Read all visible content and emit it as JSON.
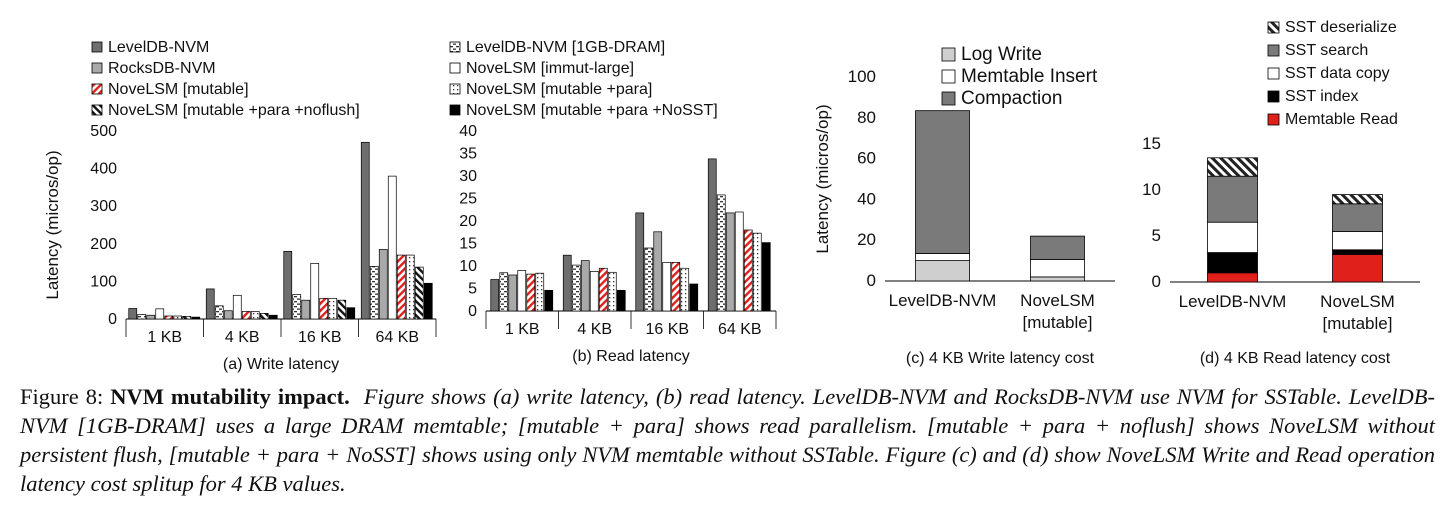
{
  "patterns": {
    "solid_dark": "#6e6e6e",
    "solid_mid": "#a9a9a9",
    "red": "#e0211b",
    "black": "#000000",
    "white": "#ffffff",
    "light": "#cfcfcf",
    "mid_gray": "#7a7a7a"
  },
  "legend_left": [
    {
      "label": "LevelDB-NVM",
      "pattern": "dark"
    },
    {
      "label": "RocksDB-NVM",
      "pattern": "mid"
    },
    {
      "label": "NoveLSM [mutable]",
      "pattern": "redhatch"
    },
    {
      "label": "NoveLSM [mutable +para +noflush]",
      "pattern": "blackhatch"
    }
  ],
  "legend_right": [
    {
      "label": "LevelDB-NVM [1GB-DRAM]",
      "pattern": "dashes"
    },
    {
      "label": "NoveLSM [immut-large]",
      "pattern": "white"
    },
    {
      "label": "NoveLSM [mutable +para]",
      "pattern": "dots"
    },
    {
      "label": "NoveLSM [mutable +para +NoSST]",
      "pattern": "black"
    }
  ],
  "chart_data": [
    {
      "type": "bar",
      "panel": "(a) Write latency",
      "ylabel": "Latency  (micros/op)",
      "ylim": [
        0,
        500
      ],
      "yticks": [
        0,
        100,
        200,
        300,
        400,
        500
      ],
      "categories": [
        "1 KB",
        "4 KB",
        "16 KB",
        "64 KB"
      ],
      "series": [
        {
          "name": "LevelDB-NVM",
          "pattern": "dark",
          "values": [
            28,
            80,
            180,
            470
          ]
        },
        {
          "name": "LevelDB-NVM [1GB-DRAM]",
          "pattern": "dashes",
          "values": [
            12,
            35,
            65,
            140
          ]
        },
        {
          "name": "RocksDB-NVM",
          "pattern": "mid",
          "values": [
            10,
            22,
            50,
            185
          ]
        },
        {
          "name": "NoveLSM [immut-large]",
          "pattern": "white",
          "values": [
            27,
            63,
            148,
            380
          ]
        },
        {
          "name": "NoveLSM [mutable]",
          "pattern": "redhatch",
          "values": [
            8,
            20,
            55,
            170
          ]
        },
        {
          "name": "NoveLSM [mutable +para]",
          "pattern": "dots",
          "values": [
            8,
            20,
            55,
            170
          ]
        },
        {
          "name": "NoveLSM [mutable +para +noflush]",
          "pattern": "blackhatch",
          "values": [
            7,
            15,
            50,
            138
          ]
        },
        {
          "name": "NoveLSM [mutable +para +NoSST]",
          "pattern": "black",
          "values": [
            5,
            10,
            30,
            95
          ]
        }
      ]
    },
    {
      "type": "bar",
      "panel": "(b) Read latency",
      "ylabel": "",
      "ylim": [
        0,
        40
      ],
      "yticks": [
        0,
        5,
        10,
        15,
        20,
        25,
        30,
        35,
        40
      ],
      "categories": [
        "1 KB",
        "4 KB",
        "16 KB",
        "64 KB"
      ],
      "series": [
        {
          "name": "LevelDB-NVM",
          "pattern": "dark",
          "values": [
            7.0,
            12.4,
            21.8,
            33.8
          ]
        },
        {
          "name": "LevelDB-NVM [1GB-DRAM]",
          "pattern": "dashes",
          "values": [
            8.5,
            10.2,
            14.0,
            25.8
          ]
        },
        {
          "name": "RocksDB-NVM",
          "pattern": "mid",
          "values": [
            8.0,
            11.2,
            17.6,
            21.8
          ]
        },
        {
          "name": "NoveLSM [immut-large]",
          "pattern": "white",
          "values": [
            9.0,
            8.8,
            10.8,
            22.0
          ]
        },
        {
          "name": "NoveLSM [mutable]",
          "pattern": "redhatch",
          "values": [
            8.2,
            9.5,
            10.8,
            18.0
          ]
        },
        {
          "name": "NoveLSM [mutable +para]",
          "pattern": "dots",
          "values": [
            8.4,
            8.6,
            9.5,
            17.3
          ]
        },
        {
          "name": "NoveLSM [mutable +para +NoSST]",
          "pattern": "black",
          "values": [
            4.6,
            4.6,
            6.0,
            15.2
          ]
        }
      ]
    },
    {
      "type": "bar",
      "stacked": true,
      "panel": "(c) 4 KB Write latency cost",
      "ylabel": "Latency (micros/op)",
      "ylim": [
        0,
        100
      ],
      "yticks": [
        0,
        20,
        40,
        60,
        80,
        100
      ],
      "categories": [
        [
          "LevelDB-NVM"
        ],
        [
          "NoveLSM",
          "[mutable]"
        ]
      ],
      "series": [
        {
          "name": "Log Write",
          "pattern": "light",
          "values": [
            10,
            2
          ]
        },
        {
          "name": "Memtable Insert",
          "pattern": "white",
          "values": [
            3.5,
            8.5
          ]
        },
        {
          "name": "Compaction",
          "pattern": "mid_gray",
          "values": [
            70,
            11.5
          ]
        }
      ]
    },
    {
      "type": "bar",
      "stacked": true,
      "panel": "(d) 4 KB Read latency cost",
      "ylabel": "",
      "ylim": [
        0,
        15
      ],
      "yticks": [
        0,
        5,
        10,
        15
      ],
      "categories": [
        [
          "LevelDB-NVM"
        ],
        [
          "NoveLSM",
          "[mutable]"
        ]
      ],
      "series": [
        {
          "name": "Memtable Read",
          "pattern": "red",
          "values": [
            1.0,
            3.0
          ]
        },
        {
          "name": "SST index",
          "pattern": "black",
          "values": [
            2.2,
            0.5
          ]
        },
        {
          "name": "SST data copy",
          "pattern": "white",
          "values": [
            3.3,
            2.0
          ]
        },
        {
          "name": "SST search",
          "pattern": "mid_gray",
          "values": [
            5.0,
            3.0
          ]
        },
        {
          "name": "SST deserialize",
          "pattern": "hatch",
          "values": [
            2.0,
            1.0
          ]
        }
      ],
      "legend_order": [
        "SST deserialize",
        "SST search",
        "SST data copy",
        "SST index",
        "Memtable Read"
      ]
    }
  ],
  "caption": {
    "label": "Figure 8: ",
    "bold": "NVM mutability impact.",
    "italic": "Figure shows (a) write latency, (b) read latency. LevelDB-NVM and RocksDB-NVM use NVM for SSTable. LevelDB-NVM [1GB-DRAM] uses a large DRAM memtable; [mutable + para] shows read parallelism. [mutable + para + noflush] shows NoveLSM without persistent flush, [mutable + para + NoSST] shows using only NVM memtable without SSTable. Figure (c) and (d) show NoveLSM Write and Read operation latency cost splitup for 4 KB values."
  }
}
